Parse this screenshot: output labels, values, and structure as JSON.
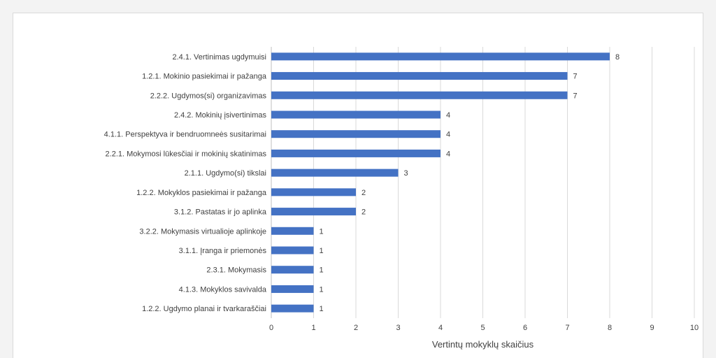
{
  "chart_data": {
    "type": "bar",
    "orientation": "horizontal",
    "categories": [
      "2.4.1. Vertinimas ugdymuisi",
      "1.2.1. Mokinio pasiekimai ir pažanga",
      "2.2.2. Ugdymos(si) organizavimas",
      "2.4.2. Mokinių įsivertinimas",
      "4.1.1. Perspektyva ir bendruomneės susitarimai",
      "2.2.1. Mokymosi lūkesčiai ir mokinių skatinimas",
      "2.1.1. Ugdymo(si) tikslai",
      "1.2.2. Mokyklos pasiekimai ir pažanga",
      "3.1.2. Pastatas ir jo aplinka",
      "3.2.2. Mokymasis virtualioje aplinkoje",
      "3.1.1. Įranga ir priemonės",
      "2.3.1. Mokymasis",
      "4.1.3. Mokyklos savivalda",
      "1.2.2. Ugdymo planai ir tvarkaraščiai"
    ],
    "values": [
      8,
      7,
      7,
      4,
      4,
      4,
      3,
      2,
      2,
      1,
      1,
      1,
      1,
      1
    ],
    "xlim": [
      0,
      10
    ],
    "xticks": [
      "0",
      "1",
      "2",
      "3",
      "4",
      "5",
      "6",
      "7",
      "8",
      "9",
      "10"
    ],
    "xlabel": "Vertintų mokyklų skaičius",
    "data_labels": true,
    "grid": "vertical",
    "bar_color": "#4472c4"
  }
}
